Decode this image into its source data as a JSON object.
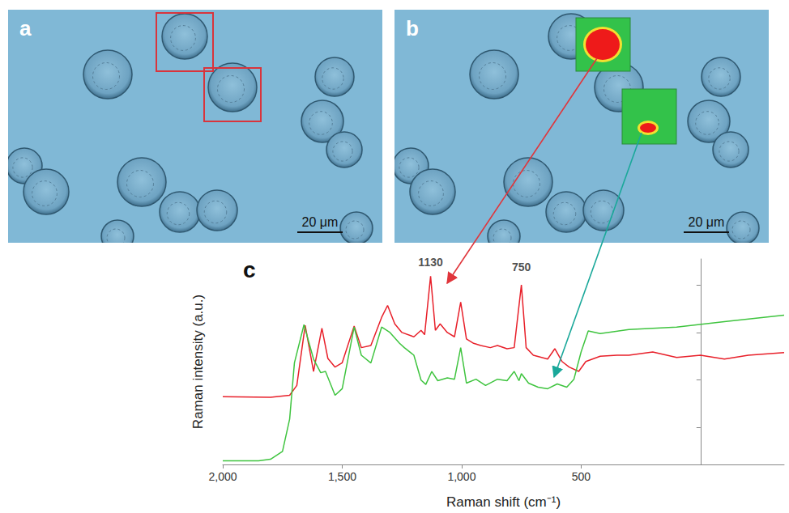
{
  "panels": [
    {
      "label": "a",
      "scale_bar": "20 μm"
    },
    {
      "label": "b",
      "scale_bar": "20 μm"
    }
  ],
  "chart_label": "c",
  "chart_data": {
    "type": "line",
    "x_label": "Raman shift (cm⁻¹)",
    "y_label": "Raman intensity (a.u.)",
    "xlim": [
      2000,
      -350
    ],
    "xticks": [
      2000,
      1500,
      1000,
      500
    ],
    "ylim": [
      5,
      100
    ],
    "yticks": [
      22,
      44,
      66,
      88
    ],
    "tick_labels": "x",
    "grid": false,
    "series": [
      {
        "color": "#e8202a",
        "x": [
          2000,
          1800,
          1720,
          1690,
          1655,
          1620,
          1585,
          1560,
          1530,
          1500,
          1450,
          1420,
          1380,
          1335,
          1310,
          1280,
          1250,
          1200,
          1170,
          1155,
          1130,
          1110,
          1090,
          1060,
          1030,
          1004,
          980,
          950,
          920,
          880,
          850,
          810,
          780,
          750,
          730,
          700,
          640,
          610,
          580,
          550,
          510,
          480,
          420,
          350,
          300,
          200,
          100,
          0,
          -100,
          -200,
          -350
        ],
        "values": [
          36.3,
          36,
          37,
          41.5,
          69.3,
          48,
          68,
          54,
          50,
          52,
          69,
          59,
          60,
          73,
          78.5,
          70,
          66,
          64,
          67,
          65,
          92,
          67,
          70,
          66,
          64,
          80,
          63,
          61,
          60,
          59,
          60,
          58.5,
          59,
          88,
          59,
          55.5,
          53.7,
          58.5,
          52.6,
          50,
          48,
          52.6,
          55,
          55.5,
          55.5,
          57,
          54.5,
          55.5,
          53.7,
          55.5,
          56.7
        ]
      },
      {
        "color": "#3fc43f",
        "x": [
          2000,
          1850,
          1800,
          1750,
          1720,
          1700,
          1660,
          1620,
          1590,
          1570,
          1530,
          1500,
          1450,
          1420,
          1380,
          1335,
          1300,
          1260,
          1240,
          1200,
          1170,
          1150,
          1125,
          1100,
          1060,
          1030,
          1004,
          980,
          940,
          900,
          850,
          810,
          780,
          760,
          750,
          720,
          680,
          640,
          600,
          560,
          530,
          500,
          470,
          420,
          300,
          100,
          -100,
          -350
        ],
        "values": [
          6.7,
          6.7,
          7.4,
          11,
          26,
          52,
          69.6,
          53.7,
          47.4,
          48,
          37,
          40,
          68.5,
          55.5,
          51.9,
          68.5,
          66,
          61,
          59,
          55.5,
          44,
          42,
          48,
          43.7,
          45,
          44.4,
          59,
          42.6,
          44.4,
          41.5,
          44.4,
          43.7,
          48,
          43.7,
          47,
          42.6,
          40.7,
          40,
          42.2,
          40.7,
          44.4,
          57,
          66.7,
          65.5,
          67.4,
          68.5,
          71,
          74
        ]
      }
    ],
    "annotations": [
      {
        "text": "1130",
        "x": 1130,
        "y": 95
      },
      {
        "text": "750",
        "x": 750,
        "y": 93
      }
    ]
  }
}
